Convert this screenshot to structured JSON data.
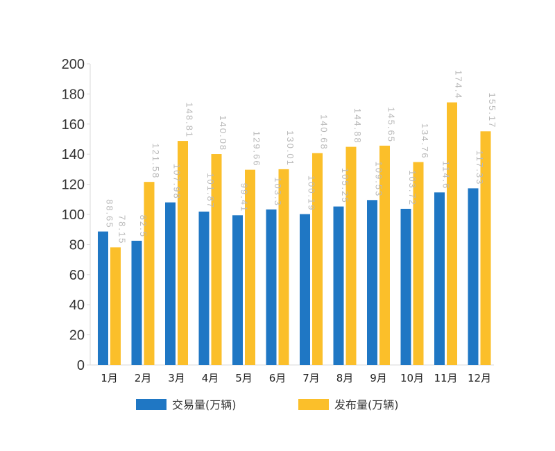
{
  "chart_data": {
    "type": "bar",
    "title": "",
    "xlabel": "",
    "ylabel": "",
    "ylim": [
      0,
      200
    ],
    "yticks": [
      0,
      20,
      40,
      60,
      80,
      100,
      120,
      140,
      160,
      180,
      200
    ],
    "grid": false,
    "legend_position": "bottom",
    "categories": [
      "1月",
      "2月",
      "3月",
      "4月",
      "5月",
      "6月",
      "7月",
      "8月",
      "9月",
      "10月",
      "11月",
      "12月"
    ],
    "series": [
      {
        "name": "交易量(万辆)",
        "color": "#1f77c4",
        "values": [
          88.65,
          82.5,
          107.98,
          101.87,
          99.41,
          103.3,
          100.19,
          105.25,
          109.53,
          103.72,
          114.6,
          117.33
        ]
      },
      {
        "name": "发布量(万辆)",
        "color": "#fbbf2a",
        "values": [
          78.15,
          121.58,
          148.81,
          140.08,
          129.66,
          130.01,
          140.68,
          144.88,
          145.65,
          134.76,
          174.4,
          155.17
        ]
      }
    ],
    "data_label_color": "#b9b9b9"
  }
}
